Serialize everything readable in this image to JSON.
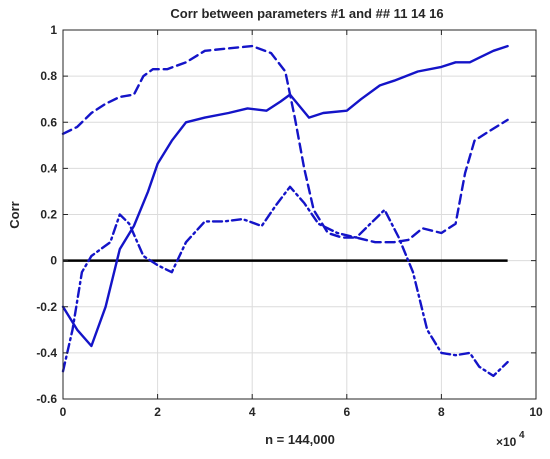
{
  "chart_data": {
    "type": "line",
    "title": "Corr between  parameters #1 and ## 11  14  16",
    "xlabel": "n = 144,000",
    "ylabel": "Corr",
    "x_multiplier_label": "×10",
    "x_multiplier_exp": "4",
    "xlim": [
      0,
      10
    ],
    "ylim": [
      -0.6,
      1
    ],
    "xticks": [
      0,
      2,
      4,
      6,
      8,
      10
    ],
    "xtick_labels": [
      "0",
      "2",
      "4",
      "6",
      "8",
      "10"
    ],
    "yticks": [
      -0.6,
      -0.4,
      -0.2,
      0,
      0.2,
      0.4,
      0.6,
      0.8,
      1
    ],
    "ytick_labels": [
      "-0.6",
      "-0.4",
      "-0.2",
      "0",
      "0.2",
      "0.4",
      "0.6",
      "0.8",
      "1"
    ],
    "grid": true,
    "zero_line": {
      "y": 0,
      "color": "#000000",
      "x_range": [
        0,
        9.4
      ]
    },
    "series_color": "#1414c8",
    "series": [
      {
        "style": "solid",
        "x": [
          0,
          0.3,
          0.6,
          0.9,
          1.2,
          1.5,
          1.8,
          2.0,
          2.3,
          2.6,
          3.0,
          3.5,
          3.9,
          4.3,
          4.6,
          4.8,
          5.0,
          5.2,
          5.5,
          6.0,
          6.3,
          6.7,
          7.0,
          7.5,
          8.0,
          8.3,
          8.6,
          8.8,
          9.1,
          9.4
        ],
        "y": [
          -0.2,
          -0.3,
          -0.37,
          -0.2,
          0.05,
          0.15,
          0.3,
          0.42,
          0.52,
          0.6,
          0.62,
          0.64,
          0.66,
          0.65,
          0.69,
          0.72,
          0.67,
          0.62,
          0.64,
          0.65,
          0.7,
          0.76,
          0.78,
          0.82,
          0.84,
          0.86,
          0.86,
          0.88,
          0.91,
          0.93
        ]
      },
      {
        "style": "dashed",
        "x": [
          0,
          0.3,
          0.6,
          0.9,
          1.2,
          1.5,
          1.7,
          1.9,
          2.2,
          2.6,
          3.0,
          3.5,
          4.0,
          4.4,
          4.7,
          4.9,
          5.1,
          5.3,
          5.6,
          5.9,
          6.2,
          6.6,
          7.0,
          7.3,
          7.6,
          8.0,
          8.3,
          8.5,
          8.7,
          9.0,
          9.4
        ],
        "y": [
          0.55,
          0.58,
          0.64,
          0.68,
          0.71,
          0.72,
          0.8,
          0.83,
          0.83,
          0.86,
          0.91,
          0.92,
          0.93,
          0.9,
          0.82,
          0.62,
          0.4,
          0.22,
          0.12,
          0.1,
          0.1,
          0.08,
          0.08,
          0.09,
          0.14,
          0.12,
          0.16,
          0.38,
          0.52,
          0.56,
          0.61
        ]
      },
      {
        "style": "dashdot",
        "x": [
          0,
          0.2,
          0.4,
          0.6,
          0.8,
          1.0,
          1.2,
          1.4,
          1.7,
          2.0,
          2.3,
          2.6,
          3.0,
          3.4,
          3.8,
          4.2,
          4.5,
          4.8,
          5.1,
          5.4,
          5.8,
          6.2,
          6.5,
          6.8,
          7.1,
          7.4,
          7.7,
          8.0,
          8.3,
          8.6,
          8.8,
          9.1,
          9.4
        ],
        "y": [
          -0.48,
          -0.3,
          -0.05,
          0.02,
          0.05,
          0.08,
          0.2,
          0.16,
          0.02,
          -0.02,
          -0.05,
          0.08,
          0.17,
          0.17,
          0.18,
          0.15,
          0.24,
          0.32,
          0.25,
          0.16,
          0.12,
          0.1,
          0.16,
          0.22,
          0.1,
          -0.05,
          -0.3,
          -0.4,
          -0.41,
          -0.4,
          -0.46,
          -0.5,
          -0.44
        ]
      }
    ]
  }
}
